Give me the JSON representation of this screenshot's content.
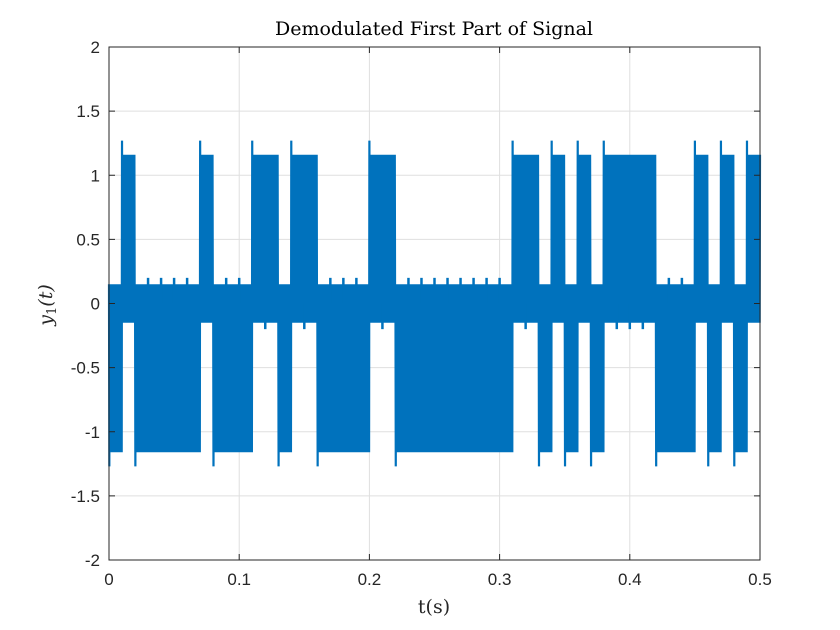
{
  "chart_data": {
    "type": "line",
    "title": "Demodulated First Part of Signal",
    "xlabel": "t(s)",
    "ylabel": {
      "symbol": "y",
      "subscript": "1",
      "argument": "(t)"
    },
    "xlim": [
      0,
      0.5
    ],
    "ylim": [
      -2,
      2
    ],
    "xticks": [
      0,
      0.1,
      0.2,
      0.3,
      0.4,
      0.5
    ],
    "xtick_labels": [
      "0",
      "0.1",
      "0.2",
      "0.3",
      "0.4",
      "0.5"
    ],
    "yticks": [
      -2,
      -1.5,
      -1,
      -0.5,
      0,
      0.5,
      1,
      1.5,
      2
    ],
    "ytick_labels": [
      "-2",
      "-1.5",
      "-1",
      "-0.5",
      "0",
      "0.5",
      "1",
      "1.5",
      "2"
    ],
    "grid": true,
    "line_color": "#0072BD",
    "bit_duration": 0.01,
    "carrier_cycles_per_bit": 20,
    "symbol_levels": {
      "high": {
        "upper": 1.16,
        "lower": -0.15
      },
      "low": {
        "upper": 0.15,
        "lower": -1.16
      }
    },
    "transition_overshoot": {
      "upper": 1.27,
      "lower": -1.27
    },
    "series": [
      {
        "bits": [
          0,
          1,
          0,
          0,
          0,
          0,
          0,
          1,
          0,
          0,
          0,
          1,
          1,
          0,
          1,
          1,
          0,
          0,
          0,
          0,
          1,
          1,
          0,
          0,
          0,
          0,
          0,
          0,
          0,
          0,
          0,
          1,
          1,
          0,
          1,
          0,
          1,
          0,
          1,
          1,
          1,
          1,
          0,
          0,
          0,
          1,
          0,
          1,
          0,
          1
        ]
      }
    ]
  }
}
